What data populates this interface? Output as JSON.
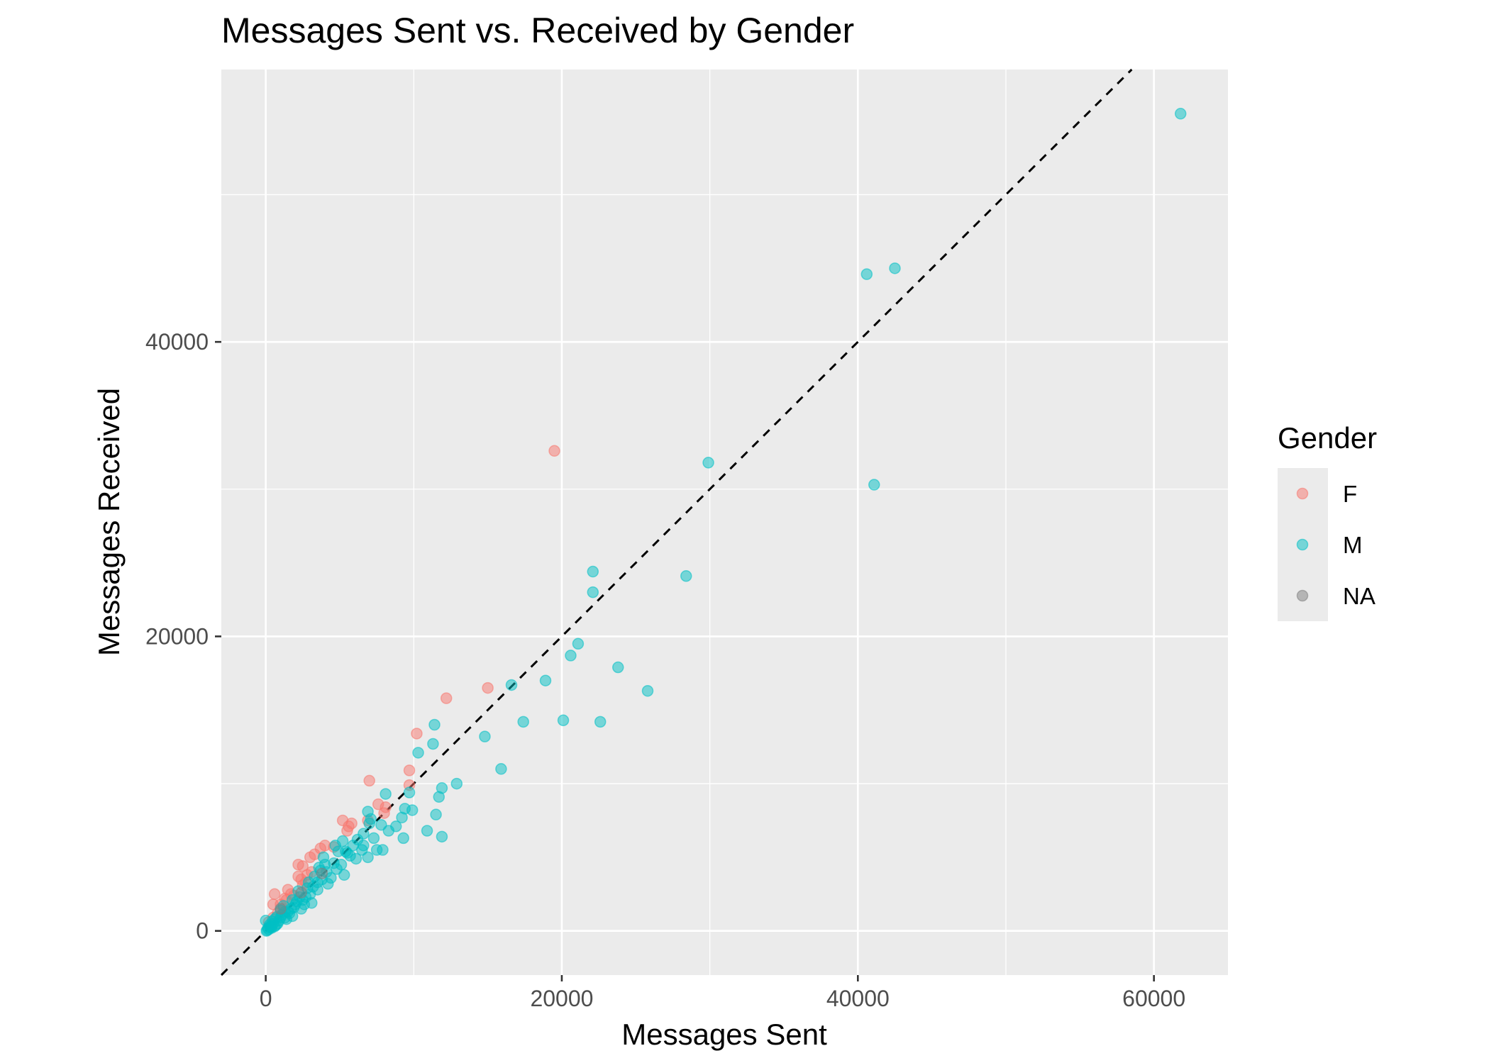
{
  "chart_data": {
    "type": "scatter",
    "title": "Messages Sent vs. Received by Gender",
    "xlabel": "Messages Sent",
    "ylabel": "Messages Received",
    "xlim": [
      -3000,
      65000
    ],
    "ylim": [
      -3000,
      58500
    ],
    "x_ticks": [
      0,
      20000,
      40000,
      60000
    ],
    "x_tick_labels": [
      "0",
      "20000",
      "40000",
      "60000"
    ],
    "y_ticks": [
      0,
      20000,
      40000
    ],
    "y_tick_labels": [
      "0",
      "20000",
      "40000"
    ],
    "x_minor_gridlines": [
      10000,
      30000,
      50000
    ],
    "y_minor_gridlines": [
      10000,
      30000,
      50000
    ],
    "grid": true,
    "reference_line": {
      "style": "dashed",
      "color": "#000000",
      "slope": 1,
      "intercept": 0
    },
    "legend": {
      "title": "Gender",
      "position": "right",
      "entries": [
        {
          "label": "F",
          "color": "#F8766D"
        },
        {
          "label": "M",
          "color": "#00BFC4"
        },
        {
          "label": "NA",
          "color": "#7F7F7F"
        }
      ]
    },
    "series": [
      {
        "name": "F",
        "color": "#F8766D",
        "points": [
          [
            19500,
            32600
          ],
          [
            15000,
            16500
          ],
          [
            12200,
            15800
          ],
          [
            10200,
            13400
          ],
          [
            9700,
            10900
          ],
          [
            9700,
            9900
          ],
          [
            7000,
            10200
          ],
          [
            8100,
            8400
          ],
          [
            7600,
            8600
          ],
          [
            8000,
            8000
          ],
          [
            6900,
            7500
          ],
          [
            5200,
            7500
          ],
          [
            5800,
            7300
          ],
          [
            5500,
            6800
          ],
          [
            5600,
            7100
          ],
          [
            4000,
            5800
          ],
          [
            3700,
            5600
          ],
          [
            4600,
            5700
          ],
          [
            3000,
            5000
          ],
          [
            3300,
            5200
          ],
          [
            2200,
            4500
          ],
          [
            2500,
            4400
          ],
          [
            600,
            2500
          ],
          [
            2400,
            3500
          ],
          [
            2800,
            3800
          ],
          [
            2200,
            3700
          ],
          [
            1400,
            2100
          ],
          [
            1900,
            2400
          ],
          [
            1000,
            1800
          ],
          [
            500,
            1800
          ],
          [
            1500,
            2800
          ],
          [
            1700,
            2500
          ],
          [
            1200,
            1500
          ],
          [
            800,
            1200
          ],
          [
            2500,
            3100
          ],
          [
            3100,
            4000
          ],
          [
            2700,
            3300
          ],
          [
            500,
            900
          ],
          [
            200,
            600
          ],
          [
            1300,
            2200
          ]
        ]
      },
      {
        "name": "M",
        "color": "#00BFC4",
        "points": [
          [
            61800,
            55500
          ],
          [
            42500,
            45000
          ],
          [
            40600,
            44600
          ],
          [
            41100,
            30300
          ],
          [
            29900,
            31800
          ],
          [
            28400,
            24100
          ],
          [
            22100,
            24400
          ],
          [
            22100,
            23000
          ],
          [
            21100,
            19500
          ],
          [
            20600,
            18700
          ],
          [
            23800,
            17900
          ],
          [
            25800,
            16300
          ],
          [
            18900,
            17000
          ],
          [
            16600,
            16700
          ],
          [
            20100,
            14300
          ],
          [
            22600,
            14200
          ],
          [
            17400,
            14200
          ],
          [
            14800,
            13200
          ],
          [
            11400,
            14000
          ],
          [
            11300,
            12700
          ],
          [
            10300,
            12100
          ],
          [
            15900,
            11000
          ],
          [
            12900,
            10000
          ],
          [
            11900,
            9700
          ],
          [
            11700,
            9100
          ],
          [
            11500,
            7900
          ],
          [
            11900,
            6400
          ],
          [
            10900,
            6800
          ],
          [
            9300,
            6300
          ],
          [
            9700,
            9400
          ],
          [
            9900,
            8200
          ],
          [
            9400,
            8300
          ],
          [
            9200,
            7700
          ],
          [
            8100,
            9300
          ],
          [
            8300,
            6800
          ],
          [
            8800,
            7100
          ],
          [
            7800,
            7200
          ],
          [
            7300,
            6300
          ],
          [
            6900,
            8100
          ],
          [
            7100,
            7600
          ],
          [
            7900,
            5500
          ],
          [
            7500,
            5500
          ],
          [
            6600,
            5800
          ],
          [
            6900,
            5000
          ],
          [
            6500,
            5500
          ],
          [
            6100,
            4900
          ],
          [
            5500,
            5300
          ],
          [
            5100,
            4500
          ],
          [
            5300,
            3800
          ],
          [
            4800,
            4200
          ],
          [
            4600,
            4600
          ],
          [
            5400,
            5400
          ],
          [
            5200,
            6100
          ],
          [
            4700,
            5800
          ],
          [
            4100,
            4000
          ],
          [
            3800,
            3500
          ],
          [
            4200,
            3200
          ],
          [
            3900,
            5000
          ],
          [
            3500,
            2800
          ],
          [
            3200,
            3000
          ],
          [
            3000,
            2500
          ],
          [
            3100,
            1900
          ],
          [
            2600,
            1800
          ],
          [
            2900,
            3300
          ],
          [
            2300,
            2300
          ],
          [
            2100,
            2000
          ],
          [
            1700,
            1500
          ],
          [
            1800,
            1000
          ],
          [
            1500,
            1300
          ],
          [
            1300,
            900
          ],
          [
            1100,
            1100
          ],
          [
            900,
            700
          ],
          [
            700,
            400
          ],
          [
            500,
            500
          ],
          [
            400,
            200
          ],
          [
            300,
            300
          ],
          [
            200,
            100
          ],
          [
            150,
            200
          ],
          [
            100,
            50
          ],
          [
            50,
            0
          ],
          [
            0,
            700
          ],
          [
            250,
            400
          ],
          [
            600,
            800
          ],
          [
            800,
            500
          ],
          [
            1000,
            1400
          ],
          [
            1200,
            1700
          ],
          [
            1400,
            800
          ],
          [
            1600,
            1200
          ],
          [
            1900,
            1600
          ],
          [
            2200,
            2700
          ],
          [
            2400,
            1500
          ],
          [
            2700,
            2300
          ],
          [
            3300,
            3700
          ],
          [
            3600,
            4300
          ],
          [
            4000,
            4500
          ],
          [
            4400,
            3600
          ],
          [
            2800,
            2900
          ],
          [
            3500,
            3300
          ],
          [
            2000,
            1800
          ],
          [
            1000,
            900
          ],
          [
            600,
            300
          ],
          [
            350,
            250
          ],
          [
            450,
            650
          ],
          [
            750,
            950
          ],
          [
            1300,
            1300
          ],
          [
            1800,
            2100
          ],
          [
            2500,
            2100
          ],
          [
            3700,
            4100
          ],
          [
            4900,
            5400
          ],
          [
            5700,
            5100
          ],
          [
            6200,
            6200
          ],
          [
            6600,
            6600
          ],
          [
            7000,
            7300
          ],
          [
            5900,
            5800
          ]
        ]
      },
      {
        "name": "NA",
        "color": "#7F7F7F",
        "points": [
          [
            1000,
            1500
          ],
          [
            2400,
            2600
          ],
          [
            3800,
            3900
          ]
        ]
      }
    ]
  }
}
